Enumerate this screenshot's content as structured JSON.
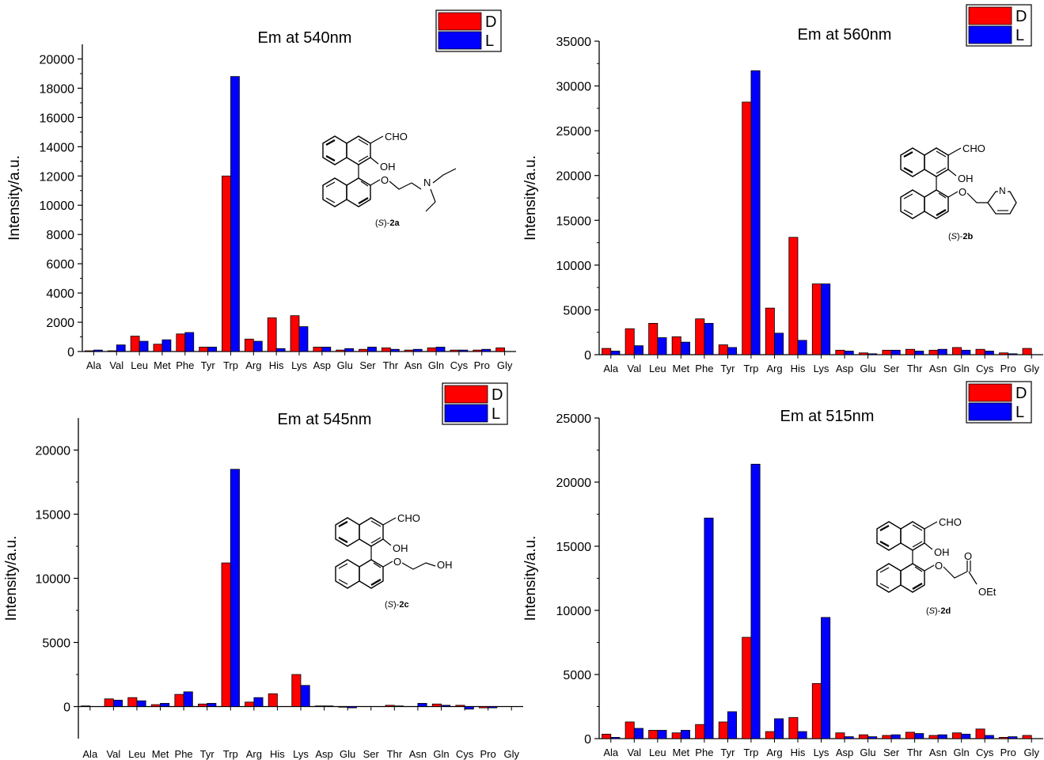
{
  "colors": {
    "D": "#ff0000",
    "L": "#0000ff",
    "axis": "#000000"
  },
  "chart_data": [
    {
      "type": "bar",
      "title": "Em at 540nm",
      "ylabel": "Intensity/a.u.",
      "ylim": [
        0,
        21000
      ],
      "yticks": [
        0,
        2000,
        4000,
        6000,
        8000,
        10000,
        12000,
        14000,
        16000,
        18000,
        20000
      ],
      "legend_position": "top-right",
      "categories": [
        "Ala",
        "Val",
        "Leu",
        "Met",
        "Phe",
        "Tyr",
        "Trp",
        "Arg",
        "His",
        "Lys",
        "Asp",
        "Glu",
        "Ser",
        "Thr",
        "Asn",
        "Gln",
        "Cys",
        "Pro",
        "Gly"
      ],
      "series": [
        {
          "name": "D",
          "values": [
            50,
            50,
            1050,
            500,
            1200,
            300,
            12000,
            850,
            2300,
            2450,
            300,
            100,
            150,
            250,
            100,
            250,
            100,
            100,
            250
          ]
        },
        {
          "name": "L",
          "values": [
            100,
            450,
            700,
            800,
            1300,
            300,
            18800,
            700,
            200,
            1700,
            300,
            200,
            300,
            150,
            150,
            300,
            100,
            150,
            0
          ]
        }
      ],
      "compound": {
        "label_prefix": "(S)-",
        "label_bold": "2a",
        "substituent": "N,N-diethylaminoethyl"
      }
    },
    {
      "type": "bar",
      "title": "Em at 560nm",
      "ylabel": "Intensity/a.u.",
      "ylim": [
        0,
        35000
      ],
      "yticks": [
        0,
        5000,
        10000,
        15000,
        20000,
        25000,
        30000,
        35000
      ],
      "legend_position": "top-right",
      "categories": [
        "Ala",
        "Val",
        "Leu",
        "Met",
        "Phe",
        "Tyr",
        "Trp",
        "Arg",
        "His",
        "Lys",
        "Asp",
        "Glu",
        "Ser",
        "Thr",
        "Asn",
        "Gln",
        "Cys",
        "Pro",
        "Gly"
      ],
      "series": [
        {
          "name": "D",
          "values": [
            700,
            2900,
            3500,
            2000,
            4000,
            1100,
            28200,
            5200,
            13100,
            7900,
            500,
            200,
            500,
            600,
            500,
            800,
            600,
            200,
            700
          ]
        },
        {
          "name": "L",
          "values": [
            400,
            1000,
            1900,
            1400,
            3500,
            800,
            31700,
            2400,
            1600,
            7900,
            400,
            100,
            500,
            400,
            600,
            500,
            400,
            100,
            0
          ]
        }
      ],
      "compound": {
        "label_prefix": "(S)-",
        "label_bold": "2b",
        "substituent": "2-pyridylmethyl"
      }
    },
    {
      "type": "bar",
      "title": "Em at 545nm",
      "ylabel": "Intensity/a.u.",
      "ylim": [
        -2500,
        22500
      ],
      "yticks": [
        0,
        5000,
        10000,
        15000,
        20000
      ],
      "legend_position": "top-right",
      "categories": [
        "Ala",
        "Val",
        "Leu",
        "Met",
        "Phe",
        "Tyr",
        "Trp",
        "Arg",
        "His",
        "Lys",
        "Asp",
        "Glu",
        "Ser",
        "Thr",
        "Asn",
        "Gln",
        "Cys",
        "Pro",
        "Gly"
      ],
      "series": [
        {
          "name": "D",
          "values": [
            50,
            600,
            700,
            150,
            950,
            200,
            11200,
            350,
            1000,
            2500,
            50,
            -50,
            0,
            100,
            0,
            200,
            100,
            -100,
            0
          ]
        },
        {
          "name": "L",
          "values": [
            0,
            500,
            450,
            250,
            1150,
            250,
            18500,
            700,
            0,
            1650,
            50,
            -100,
            0,
            50,
            250,
            100,
            -200,
            -100,
            0
          ]
        }
      ],
      "compound": {
        "label_prefix": "(S)-",
        "label_bold": "2c",
        "substituent": "2-hydroxyethyl"
      }
    },
    {
      "type": "bar",
      "title": "Em at 515nm",
      "ylabel": "Intensity/a.u.",
      "ylim": [
        0,
        25000
      ],
      "yticks": [
        0,
        5000,
        10000,
        15000,
        20000,
        25000
      ],
      "legend_position": "top-right",
      "categories": [
        "Ala",
        "Val",
        "Leu",
        "Met",
        "Phe",
        "Tyr",
        "Trp",
        "Arg",
        "His",
        "Lys",
        "Asp",
        "Glu",
        "Ser",
        "Thr",
        "Asn",
        "Gln",
        "Cys",
        "Pro",
        "Gly"
      ],
      "series": [
        {
          "name": "D",
          "values": [
            350,
            1300,
            650,
            450,
            1100,
            1300,
            7900,
            550,
            1650,
            4300,
            450,
            300,
            250,
            500,
            250,
            450,
            750,
            100,
            250
          ]
        },
        {
          "name": "L",
          "values": [
            100,
            800,
            650,
            650,
            17200,
            2100,
            21400,
            1550,
            550,
            9450,
            150,
            150,
            300,
            400,
            300,
            350,
            250,
            150,
            0
          ]
        }
      ],
      "compound": {
        "label_prefix": "(S)-",
        "label_bold": "2d",
        "substituent": "ethoxycarbonylmethyl"
      }
    }
  ],
  "structures": {
    "cho": "CHO",
    "oh": "OH",
    "o": "O",
    "n": "N",
    "oet": "OEt"
  }
}
